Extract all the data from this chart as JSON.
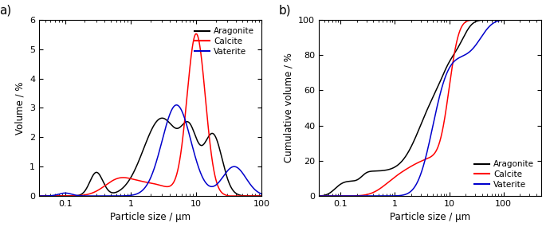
{
  "panel_a_label": "a)",
  "panel_b_label": "b)",
  "xlabel": "Particle size / μm",
  "ylabel_a": "Volume / %",
  "ylabel_b": "Cumulative volume / %",
  "colors": {
    "aragonite": "#000000",
    "calcite": "#ff0000",
    "vaterite": "#0000cc"
  },
  "legend_labels": [
    "Aragonite",
    "Calcite",
    "Vaterite"
  ],
  "xlim_a": [
    0.04,
    100
  ],
  "xlim_b": [
    0.04,
    500
  ],
  "ylim_a": [
    0,
    6
  ],
  "ylim_b": [
    0,
    100
  ],
  "yticks_a": [
    0,
    1,
    2,
    3,
    4,
    5,
    6
  ],
  "yticks_b": [
    0,
    20,
    40,
    60,
    80,
    100
  ]
}
